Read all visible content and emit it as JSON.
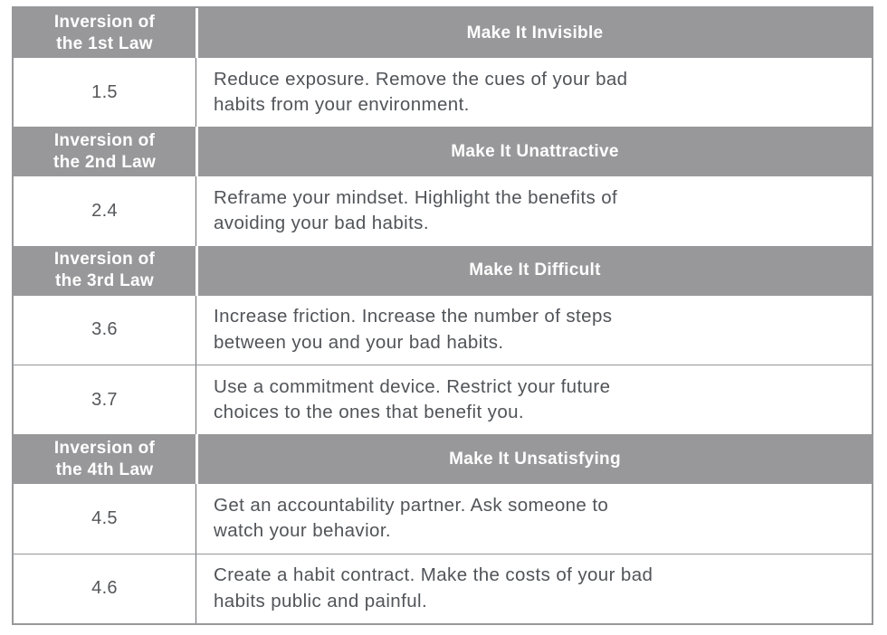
{
  "colors": {
    "header_background": "#98989a",
    "header_text": "#ffffff",
    "body_text": "#515458",
    "outer_border": "#96989a",
    "vertical_divider": "#6d6e71",
    "horizontal_divider": "#939598",
    "page_background": "#ffffff"
  },
  "table": {
    "rows": [
      {
        "type": "header",
        "left": "Inversion of\nthe 1st Law",
        "right": "Make It Invisible"
      },
      {
        "type": "body",
        "number": "1.5",
        "description": "Reduce exposure. Remove the cues of your bad\nhabits from your environment."
      },
      {
        "type": "header",
        "left": "Inversion of\nthe 2nd Law",
        "right": "Make It Unattractive"
      },
      {
        "type": "body",
        "number": "2.4",
        "description": "Reframe your mindset. Highlight the benefits of\navoiding your bad habits."
      },
      {
        "type": "header",
        "left": "Inversion of\nthe 3rd Law",
        "right": "Make It Difficult"
      },
      {
        "type": "body",
        "number": "3.6",
        "description": "Increase friction. Increase the number of steps\nbetween you and your bad habits."
      },
      {
        "type": "body",
        "number": "3.7",
        "description": "Use a commitment device. Restrict your future\nchoices to the ones that benefit you."
      },
      {
        "type": "header",
        "left": "Inversion of\nthe 4th Law",
        "right": "Make It Unsatisfying"
      },
      {
        "type": "body",
        "number": "4.5",
        "description": "Get an accountability partner. Ask someone to\nwatch your behavior."
      },
      {
        "type": "body",
        "number": "4.6",
        "description": "Create a habit contract. Make the costs of your bad\nhabits public and painful."
      }
    ]
  }
}
